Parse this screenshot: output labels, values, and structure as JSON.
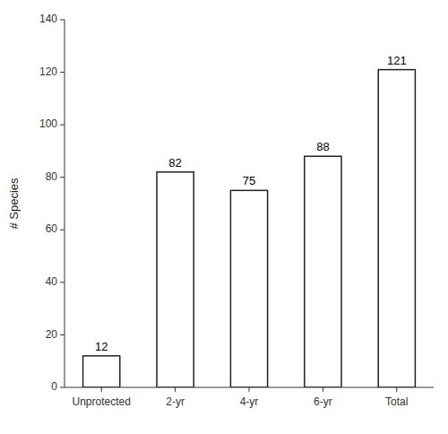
{
  "chart_data": {
    "type": "bar",
    "ylabel": "# Species",
    "categories": [
      "Unprotected",
      "2-yr",
      "4-yr",
      "6-yr",
      "Total"
    ],
    "values": [
      12,
      82,
      75,
      88,
      121
    ],
    "color": "#ffffff",
    "ylim": [
      0,
      140
    ],
    "yticks": [
      0,
      20,
      40,
      60,
      80,
      100,
      120,
      140
    ],
    "grid": false,
    "data_labels": true
  }
}
